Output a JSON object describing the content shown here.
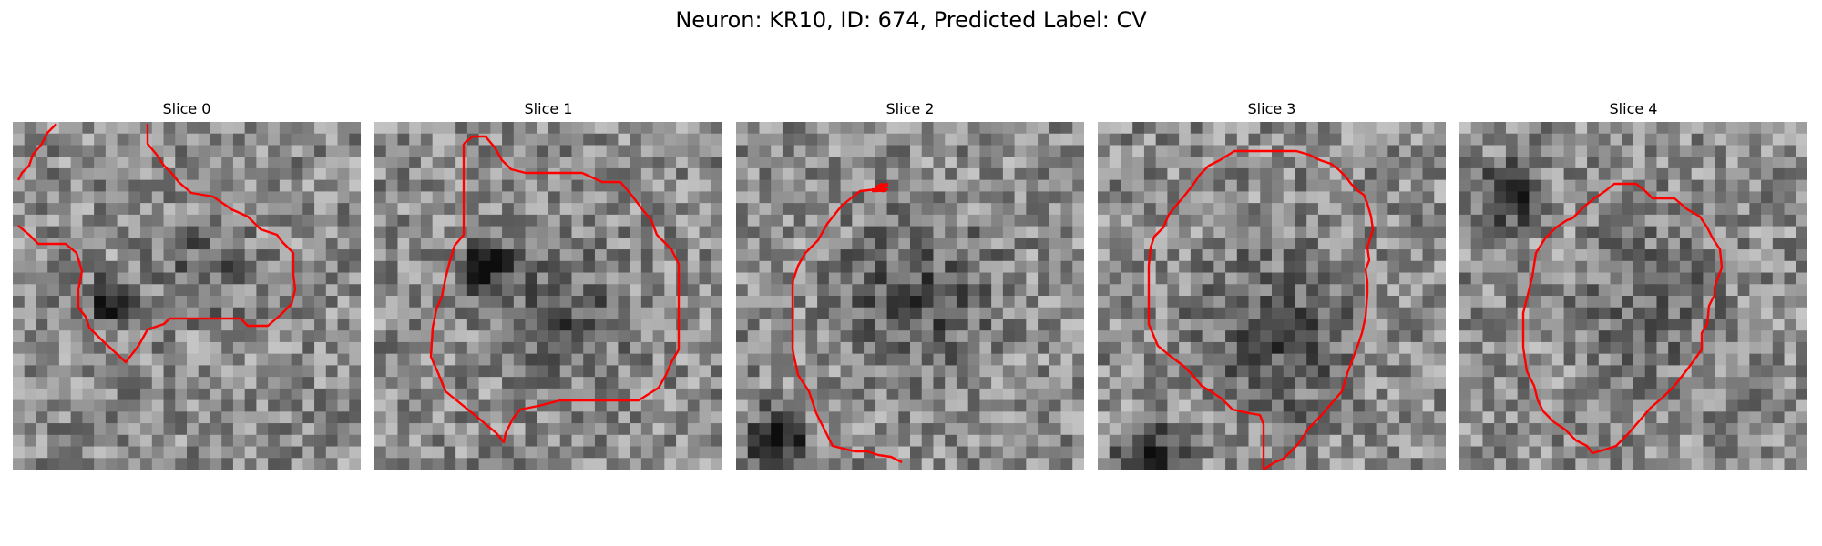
{
  "figure": {
    "title": "Neuron: KR10, ID: 674, Predicted Label: CV"
  },
  "panels": [
    {
      "title": "Slice 0"
    },
    {
      "title": "Slice 1"
    },
    {
      "title": "Slice 2"
    },
    {
      "title": "Slice 3"
    },
    {
      "title": "Slice 4"
    }
  ],
  "colors": {
    "contour": "#ff0000",
    "background": "#ffffff"
  }
}
